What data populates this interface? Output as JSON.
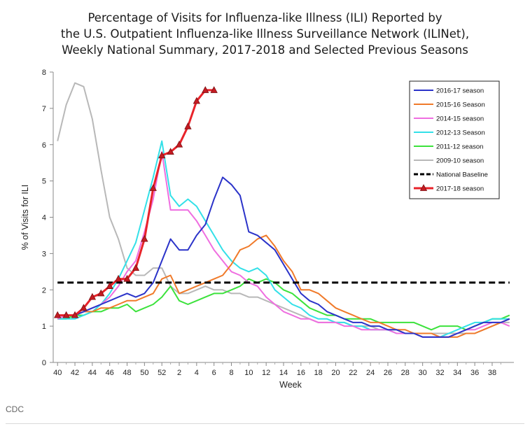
{
  "figure": {
    "title": "Percentage of Visits for Influenza-like Illness (ILI) Reported by\nthe U.S. Outpatient Influenza-like Illness Surveillance Network (ILINet),\nWeekly National Summary, 2017-2018 and Selected Previous Seasons",
    "source": "CDC"
  },
  "chart_data": {
    "type": "line",
    "title": "Percentage of Visits for Influenza-like Illness (ILI) Reported by the U.S. Outpatient Influenza-like Illness Surveillance Network (ILINet), Weekly National Summary, 2017-2018 and Selected Previous Seasons",
    "xlabel": "Week",
    "ylabel": "% of Visits for ILI",
    "x_ticks": [
      "40",
      "42",
      "44",
      "46",
      "48",
      "50",
      "52",
      "2",
      "4",
      "6",
      "8",
      "10",
      "12",
      "14",
      "16",
      "18",
      "20",
      "22",
      "24",
      "26",
      "28",
      "30",
      "32",
      "34",
      "36",
      "38"
    ],
    "y_ticks": [
      "0",
      "1",
      "2",
      "3",
      "4",
      "5",
      "6",
      "7",
      "8"
    ],
    "ylim": [
      0,
      8
    ],
    "grid": false,
    "legend_position": "top-right",
    "series": [
      {
        "name": "2016-17 season",
        "color": "#2b33c9",
        "style": "solid",
        "values": [
          1.3,
          1.3,
          1.3,
          1.4,
          1.5,
          1.6,
          1.7,
          1.8,
          1.9,
          1.8,
          1.9,
          2.2,
          2.8,
          3.4,
          3.1,
          3.1,
          3.5,
          3.8,
          4.5,
          5.1,
          4.9,
          4.6,
          3.6,
          3.5,
          3.3,
          3.1,
          2.7,
          2.3,
          1.9,
          1.7,
          1.6,
          1.4,
          1.3,
          1.2,
          1.1,
          1.1,
          1.0,
          1.0,
          0.9,
          0.9,
          0.8,
          0.8,
          0.7,
          0.7,
          0.7,
          0.7,
          0.8,
          0.9,
          1.0,
          1.1,
          1.1,
          1.1,
          1.2
        ]
      },
      {
        "name": "2015-16 Season",
        "color": "#f07a2a",
        "style": "solid",
        "values": [
          1.3,
          1.3,
          1.3,
          1.4,
          1.4,
          1.5,
          1.5,
          1.6,
          1.7,
          1.7,
          1.8,
          1.9,
          2.3,
          2.4,
          1.9,
          2.0,
          2.1,
          2.2,
          2.3,
          2.4,
          2.7,
          3.1,
          3.2,
          3.4,
          3.5,
          3.2,
          2.8,
          2.5,
          2.0,
          2.0,
          1.9,
          1.7,
          1.5,
          1.4,
          1.3,
          1.2,
          1.1,
          1.1,
          1.0,
          0.9,
          0.9,
          0.8,
          0.8,
          0.8,
          0.7,
          0.7,
          0.7,
          0.8,
          0.8,
          0.9,
          1.0,
          1.1,
          1.2
        ]
      },
      {
        "name": "2014-15 season",
        "color": "#ef6ee0",
        "style": "solid",
        "values": [
          1.2,
          1.3,
          1.3,
          1.4,
          1.5,
          1.6,
          1.8,
          2.1,
          2.5,
          2.8,
          3.6,
          4.5,
          5.8,
          4.2,
          4.2,
          4.2,
          3.9,
          3.5,
          3.1,
          2.8,
          2.5,
          2.4,
          2.2,
          2.1,
          1.8,
          1.6,
          1.4,
          1.3,
          1.2,
          1.2,
          1.1,
          1.1,
          1.1,
          1.0,
          1.0,
          0.9,
          0.9,
          0.9,
          0.9,
          0.8,
          0.8,
          0.8,
          0.7,
          0.7,
          0.7,
          0.7,
          0.8,
          0.9,
          0.9,
          1.0,
          1.1,
          1.1,
          1.0
        ]
      },
      {
        "name": "2012-13 Season",
        "color": "#33e0e8",
        "style": "solid",
        "values": [
          1.2,
          1.2,
          1.2,
          1.3,
          1.4,
          1.6,
          1.9,
          2.3,
          2.8,
          3.3,
          4.2,
          5.1,
          6.1,
          4.6,
          4.3,
          4.5,
          4.3,
          3.9,
          3.5,
          3.1,
          2.8,
          2.6,
          2.5,
          2.6,
          2.4,
          2.0,
          1.8,
          1.6,
          1.5,
          1.3,
          1.2,
          1.2,
          1.1,
          1.1,
          1.0,
          1.0,
          0.9,
          0.9,
          0.9,
          0.8,
          0.8,
          0.8,
          0.7,
          0.7,
          0.7,
          0.8,
          0.9,
          1.0,
          1.1,
          1.1,
          1.2,
          1.2,
          1.2
        ]
      },
      {
        "name": "2011-12 season",
        "color": "#3ce23c",
        "style": "solid",
        "values": [
          1.2,
          1.2,
          1.3,
          1.3,
          1.4,
          1.4,
          1.5,
          1.5,
          1.6,
          1.4,
          1.5,
          1.6,
          1.8,
          2.1,
          1.7,
          1.6,
          1.7,
          1.8,
          1.9,
          1.9,
          2.0,
          2.1,
          2.3,
          2.2,
          2.3,
          2.2,
          2.0,
          1.9,
          1.7,
          1.5,
          1.4,
          1.3,
          1.3,
          1.2,
          1.2,
          1.2,
          1.2,
          1.1,
          1.1,
          1.1,
          1.1,
          1.1,
          1.0,
          0.9,
          1.0,
          1.0,
          1.0,
          0.9,
          1.0,
          1.1,
          1.2,
          1.2,
          1.3
        ]
      },
      {
        "name": "2009-10 season",
        "color": "#b8b8b8",
        "style": "solid",
        "values": [
          6.1,
          7.1,
          7.7,
          7.6,
          6.7,
          5.3,
          4.0,
          3.4,
          2.6,
          2.4,
          2.4,
          2.6,
          2.6,
          2.1,
          1.9,
          1.9,
          2.0,
          2.1,
          2.0,
          2.0,
          1.9,
          1.9,
          1.8,
          1.8,
          1.7,
          1.6,
          1.5,
          1.4,
          1.3,
          1.2,
          1.1,
          1.1,
          1.1,
          1.1,
          1.0,
          1.0,
          1.0,
          0.9,
          0.9,
          0.9,
          0.8,
          0.8,
          0.8,
          0.8,
          0.8,
          0.8,
          0.8,
          0.8,
          0.8,
          0.9,
          1.0,
          1.1,
          1.1
        ]
      },
      {
        "name": "National Baseline",
        "color": "#000000",
        "style": "dashed",
        "values": [
          2.2,
          2.2,
          2.2,
          2.2,
          2.2,
          2.2,
          2.2,
          2.2,
          2.2,
          2.2,
          2.2,
          2.2,
          2.2,
          2.2,
          2.2,
          2.2,
          2.2,
          2.2,
          2.2,
          2.2,
          2.2,
          2.2,
          2.2,
          2.2,
          2.2,
          2.2,
          2.2,
          2.2,
          2.2,
          2.2,
          2.2,
          2.2,
          2.2,
          2.2,
          2.2,
          2.2,
          2.2,
          2.2,
          2.2,
          2.2,
          2.2,
          2.2,
          2.2,
          2.2,
          2.2,
          2.2,
          2.2,
          2.2,
          2.2,
          2.2,
          2.2,
          2.2,
          2.2
        ]
      },
      {
        "name": "2017-18 season",
        "color": "#e8232a",
        "style": "solid-triangle",
        "values": [
          1.3,
          1.3,
          1.3,
          1.5,
          1.8,
          1.9,
          2.1,
          2.3,
          2.3,
          2.6,
          3.4,
          4.8,
          5.7,
          5.8,
          6.0,
          6.5,
          7.2,
          7.5,
          7.5
        ]
      }
    ]
  }
}
